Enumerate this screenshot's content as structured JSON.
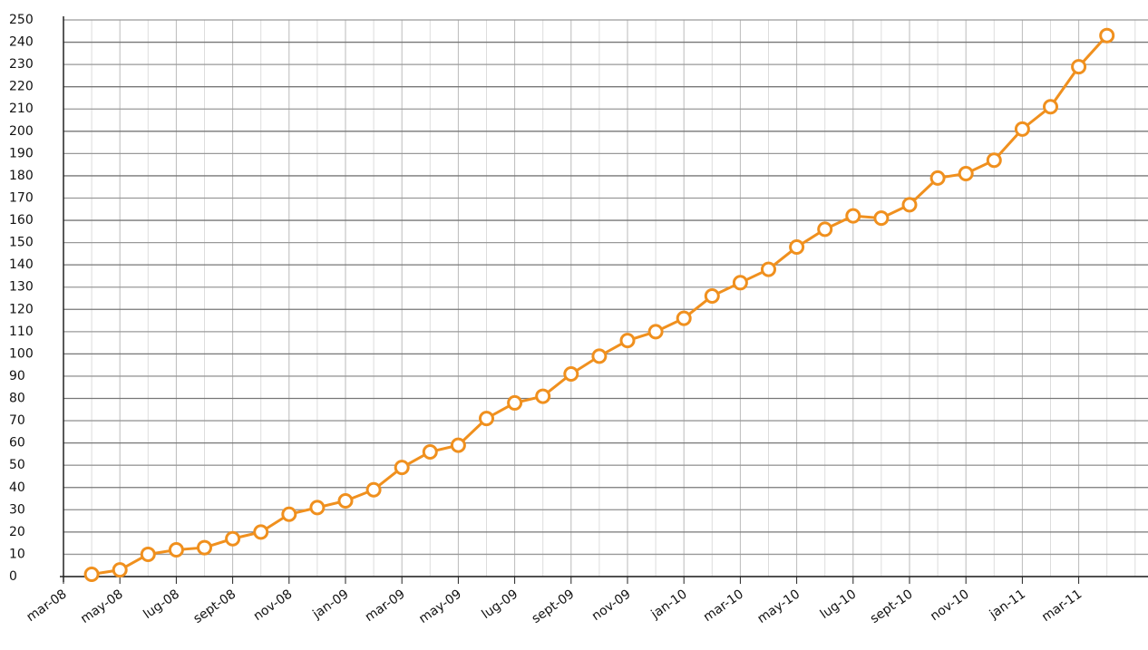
{
  "chart_data": {
    "type": "line",
    "categories": [
      "mar-08",
      null,
      "may-08",
      null,
      "lug-08",
      null,
      "sept-08",
      null,
      "nov-08",
      null,
      "jan-09",
      null,
      "mar-09",
      null,
      "may-09",
      null,
      "lug-09",
      null,
      "sept-09",
      null,
      "nov-09",
      null,
      "jan-10",
      null,
      "mar-10",
      null,
      "may-10",
      null,
      "lug-10",
      null,
      "sept-10",
      null,
      "nov-10",
      null,
      "jan-11",
      null,
      "mar-11",
      null
    ],
    "series": [
      {
        "color": "#f0901e",
        "values": [
          null,
          1,
          3,
          10,
          12,
          13,
          17,
          20,
          28,
          31,
          34,
          39,
          49,
          56,
          59,
          71,
          78,
          81,
          91,
          99,
          106,
          110,
          116,
          126,
          132,
          138,
          148,
          156,
          162,
          161,
          167,
          179,
          181,
          187,
          201,
          211,
          229,
          243
        ]
      }
    ],
    "ylim": [
      0,
      250
    ],
    "yticks": [
      0,
      10,
      20,
      30,
      40,
      50,
      60,
      70,
      80,
      90,
      100,
      110,
      120,
      130,
      140,
      150,
      160,
      170,
      180,
      190,
      200,
      210,
      220,
      230,
      240,
      250
    ],
    "grid": true
  }
}
